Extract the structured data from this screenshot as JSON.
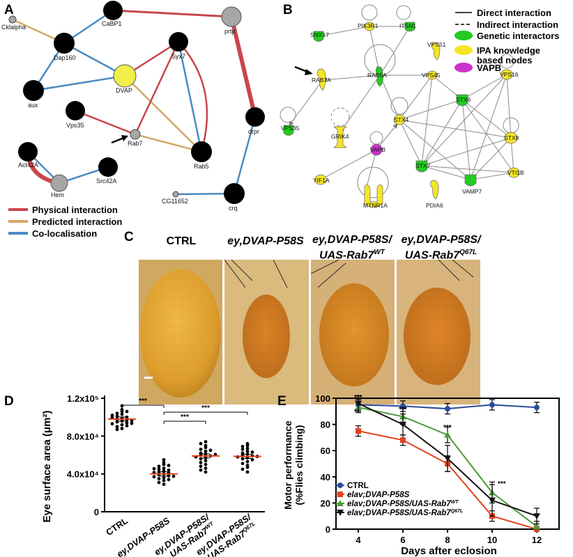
{
  "panels": {
    "a": "A",
    "b": "B",
    "c": "C",
    "d": "D",
    "e": "E"
  },
  "panel_a": {
    "nodes": [
      "Cklalpha",
      "CaBP1",
      "prtp",
      "Dap160",
      "DVAP",
      "Syx7",
      "aux",
      "Vps35",
      "Rab7",
      "Rab5",
      "drpr",
      "Act42A",
      "Src42A",
      "Hem",
      "CG11652",
      "crq"
    ],
    "legend": [
      "Physical interaction",
      "Predicted interaction",
      "Co-localisation"
    ],
    "colors": {
      "physical": "#c8464b",
      "predicted": "#d4a86a",
      "colocalisation": "#4a8ac1",
      "dvap": "#f2ee4b",
      "grey": "#a6a6a6"
    }
  },
  "panel_b": {
    "nodes": [
      "SNX17",
      "PIK3R1",
      "ITSN1",
      "RAB7A",
      "RAB5A",
      "VPS45",
      "VPS51",
      "STX6",
      "VPS16",
      "VPS35",
      "GRIK4",
      "STX4",
      "STX8",
      "VAPB",
      "STX7",
      "VTI1B",
      "VAMP7",
      "YIF1A",
      "MTNR1A",
      "PDIA6"
    ],
    "legend": [
      "Direct interaction",
      "Indirect interaction",
      "Genetic interactors",
      "IPA knowledge",
      "based nodes",
      "VAPB"
    ],
    "colors": {
      "genetic": "#22cc22",
      "ipa": "#f5e623",
      "vapb": "#cc33cc"
    }
  },
  "panel_c": {
    "columns": [
      {
        "line1": "CTRL",
        "line2": "",
        "sup": ""
      },
      {
        "line1": "ey,DVAP-P58S",
        "line2": "",
        "sup": ""
      },
      {
        "line1": "ey,DVAP-P58S/",
        "line2": "UAS-Rab7",
        "sup": "WT"
      },
      {
        "line1": "ey,DVAP-P58S/",
        "line2": "UAS-Rab7",
        "sup": "Q67L"
      }
    ]
  },
  "chart_data": [
    {
      "type": "scatter",
      "ylabel": "Eye surface area (μm²)",
      "ylim": [
        0,
        120000
      ],
      "yticks": [
        "0",
        "4.0x10⁴",
        "8.0x10⁴",
        "1.2x10⁵"
      ],
      "categories": [
        "CTRL",
        "ey,DVAP-P58S",
        "ey,DVAP-P58S/UAS-Rab7WT",
        "ey,DVAP-P58S/UAS-Rab7Q67L"
      ],
      "xtick_labels": [
        {
          "l1": "CTRL",
          "l2": "",
          "sup": ""
        },
        {
          "l1": "ey,DVAP-P58S",
          "l2": "",
          "sup": ""
        },
        {
          "l1": "ey,DVAP-P58S/",
          "l2": "UAS-Rab7",
          "sup": "WT"
        },
        {
          "l1": "ey,DVAP-P58S/",
          "l2": "UAS-Rab7",
          "sup": "Q67L"
        }
      ],
      "means": [
        98000,
        40000,
        59000,
        58500
      ],
      "points": [
        [
          112000,
          108000,
          106000,
          104000,
          103000,
          101000,
          100000,
          99000,
          98000,
          97000,
          96000,
          95000,
          94000,
          93000,
          92000,
          90000,
          88000,
          87000,
          106000,
          102000,
          99500,
          96500,
          93500,
          91000
        ],
        [
          55000,
          52000,
          50000,
          48000,
          46000,
          45000,
          44000,
          43000,
          42000,
          41000,
          40000,
          39000,
          38000,
          37000,
          36000,
          35000,
          34000,
          33000,
          31000,
          29000,
          49000,
          45500,
          41500,
          37500
        ],
        [
          74000,
          72000,
          70000,
          68000,
          66000,
          64000,
          62000,
          61000,
          60000,
          59000,
          58000,
          57000,
          56000,
          54000,
          52000,
          50000,
          48000,
          46000,
          44000,
          42000,
          65000,
          60500
        ],
        [
          72000,
          70000,
          69000,
          67000,
          66000,
          64000,
          62000,
          61000,
          60000,
          59000,
          58000,
          57000,
          56000,
          55000,
          53000,
          51000,
          49000,
          47000,
          45000,
          42000,
          63000,
          58500
        ]
      ],
      "significance": [
        {
          "from": 0,
          "to": 1,
          "label": "***"
        },
        {
          "from": 1,
          "to": 2,
          "label": "***"
        },
        {
          "from": 1,
          "to": 3,
          "label": "***"
        }
      ]
    },
    {
      "type": "line",
      "xlabel": "Days after eclosion",
      "ylabel": "Motor performance (%Flies climbing)",
      "x": [
        4,
        6,
        8,
        10,
        12
      ],
      "xlim": [
        3,
        13
      ],
      "ylim": [
        0,
        100
      ],
      "yticks": [
        0,
        20,
        40,
        60,
        80,
        100
      ],
      "series": [
        {
          "name": "CTRL",
          "color": "#2b4c9c",
          "marker": "circle",
          "values": [
            95,
            94,
            92,
            95,
            93
          ]
        },
        {
          "name": "elav;DVAP-P58S",
          "color": "#e0431e",
          "marker": "square",
          "values": [
            75,
            68,
            50,
            10,
            0
          ]
        },
        {
          "name": "elav;DVAP-P58S/UAS-Rab7",
          "sup": "WT",
          "color": "#4a9a3a",
          "marker": "triangle-up",
          "values": [
            93,
            86,
            72,
            28,
            2
          ]
        },
        {
          "name": "elav;DVAP-P58S/UAS-Rab7",
          "sup": "Q67L",
          "color": "#111111",
          "marker": "triangle-down",
          "values": [
            96,
            80,
            54,
            22,
            10
          ]
        }
      ],
      "annotations": [
        "***",
        "**",
        "***",
        "***",
        "***"
      ]
    }
  ]
}
